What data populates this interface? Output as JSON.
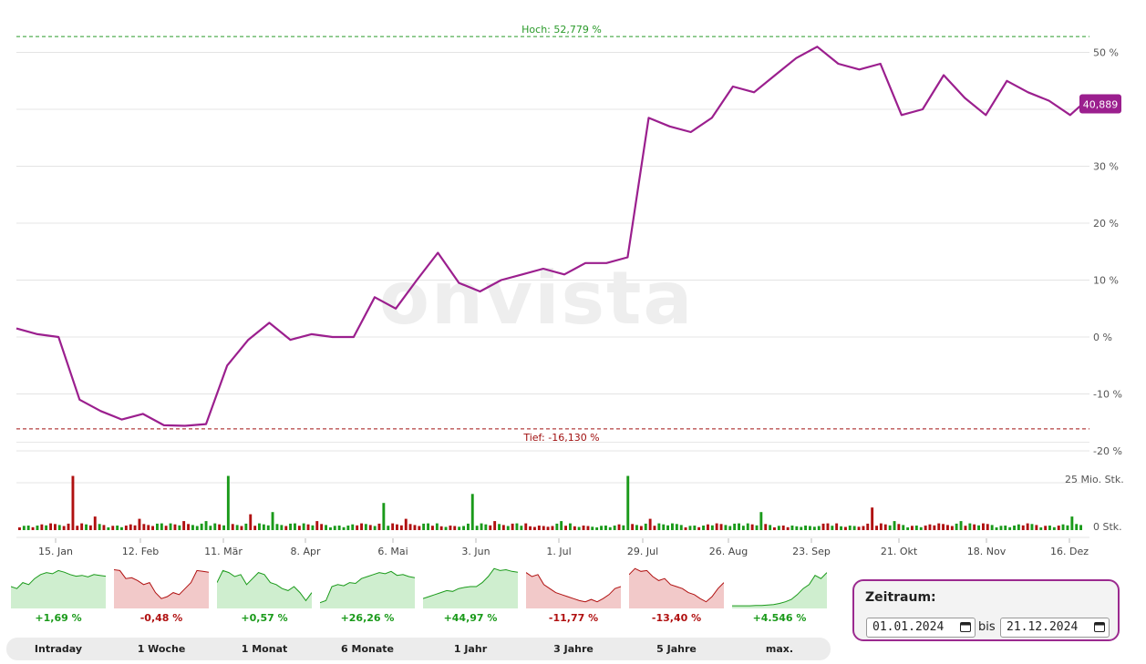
{
  "chart_data": {
    "type": "line",
    "watermark": "onvista",
    "y_unit": "%",
    "ylim": [
      -20,
      55
    ],
    "yticks": [
      "50 %",
      "30 %",
      "20 %",
      "10 %",
      "0 %",
      "-10 %",
      "-20 %"
    ],
    "ytick_values": [
      50,
      30,
      20,
      10,
      0,
      -10,
      -20
    ],
    "xticks": [
      "15. Jan",
      "12. Feb",
      "11. Mär",
      "8. Apr",
      "6. Mai",
      "3. Jun",
      "1. Jul",
      "29. Jul",
      "26. Aug",
      "23. Sep",
      "21. Okt",
      "18. Nov",
      "16. Dez"
    ],
    "grid": true,
    "high": {
      "label": "Hoch: 52,779 %",
      "value": 52.779,
      "color": "#2a9a2a"
    },
    "low": {
      "label": "Tief: -16,130 %",
      "value": -16.13,
      "color": "#a01010"
    },
    "last": {
      "label": "40,889",
      "value": 40.889
    },
    "line_color": "#9b1f8e",
    "x": [
      "2024-01-01",
      "2024-01-08",
      "2024-01-15",
      "2024-01-22",
      "2024-01-29",
      "2024-02-05",
      "2024-02-12",
      "2024-02-19",
      "2024-02-26",
      "2024-03-04",
      "2024-03-11",
      "2024-03-18",
      "2024-03-25",
      "2024-04-01",
      "2024-04-08",
      "2024-04-15",
      "2024-04-22",
      "2024-04-29",
      "2024-05-06",
      "2024-05-13",
      "2024-05-20",
      "2024-05-27",
      "2024-06-03",
      "2024-06-10",
      "2024-06-17",
      "2024-06-24",
      "2024-07-01",
      "2024-07-08",
      "2024-07-15",
      "2024-07-22",
      "2024-07-29",
      "2024-08-05",
      "2024-08-12",
      "2024-08-19",
      "2024-08-26",
      "2024-09-02",
      "2024-09-09",
      "2024-09-16",
      "2024-09-23",
      "2024-09-30",
      "2024-10-07",
      "2024-10-14",
      "2024-10-21",
      "2024-10-28",
      "2024-11-04",
      "2024-11-11",
      "2024-11-18",
      "2024-11-25",
      "2024-12-02",
      "2024-12-09",
      "2024-12-16",
      "2024-12-20"
    ],
    "series": [
      {
        "values": [
          1.5,
          0.5,
          0,
          -11,
          -13,
          -14.5,
          -13.5,
          -15.5,
          -15.6,
          -15.3,
          -5,
          -0.5,
          2.5,
          -0.5,
          0.5,
          0,
          0,
          7,
          5,
          10,
          14.8,
          9.5,
          8,
          10,
          11,
          12,
          11,
          13,
          13,
          14,
          38.5,
          37,
          36,
          38.5,
          44,
          43,
          46,
          49,
          51,
          48,
          47,
          48,
          39,
          40,
          46,
          42,
          39,
          45,
          43,
          41.5,
          39,
          40.889
        ]
      }
    ],
    "volume": {
      "label": "25 Mio. Stk.",
      "zero_label": "0 Stk.",
      "max": 25,
      "unit": "Mio. Stk.",
      "bars": [
        {
          "v": 2,
          "up": true
        },
        {
          "v": 3,
          "up": false
        },
        {
          "v": 24,
          "up": false
        },
        {
          "v": 6,
          "up": false
        },
        {
          "v": 2,
          "up": true
        },
        {
          "v": 5,
          "up": false
        },
        {
          "v": 3,
          "up": true
        },
        {
          "v": 4,
          "up": false
        },
        {
          "v": 4,
          "up": true
        },
        {
          "v": 24,
          "up": true
        },
        {
          "v": 7,
          "up": false
        },
        {
          "v": 8,
          "up": true
        },
        {
          "v": 3,
          "up": true
        },
        {
          "v": 4,
          "up": false
        },
        {
          "v": 2,
          "up": true
        },
        {
          "v": 3,
          "up": false
        },
        {
          "v": 12,
          "up": true
        },
        {
          "v": 5,
          "up": false
        },
        {
          "v": 3,
          "up": true
        },
        {
          "v": 2,
          "up": false
        },
        {
          "v": 16,
          "up": true
        },
        {
          "v": 4,
          "up": false
        },
        {
          "v": 3,
          "up": true
        },
        {
          "v": 2,
          "up": false
        },
        {
          "v": 4,
          "up": true
        },
        {
          "v": 2,
          "up": false
        },
        {
          "v": 2,
          "up": true
        },
        {
          "v": 24,
          "up": true
        },
        {
          "v": 5,
          "up": false
        },
        {
          "v": 3,
          "up": true
        },
        {
          "v": 2,
          "up": true
        },
        {
          "v": 3,
          "up": false
        },
        {
          "v": 3,
          "up": true
        },
        {
          "v": 8,
          "up": true
        },
        {
          "v": 2,
          "up": false
        },
        {
          "v": 2,
          "up": true
        },
        {
          "v": 3,
          "up": false
        },
        {
          "v": 2,
          "up": true
        },
        {
          "v": 10,
          "up": false
        },
        {
          "v": 4,
          "up": true
        },
        {
          "v": 2,
          "up": true
        },
        {
          "v": 3,
          "up": false
        },
        {
          "v": 4,
          "up": true
        },
        {
          "v": 3,
          "up": false
        },
        {
          "v": 2,
          "up": true
        },
        {
          "v": 3,
          "up": false
        },
        {
          "v": 2,
          "up": true
        },
        {
          "v": 6,
          "up": true
        }
      ]
    }
  },
  "ranges": [
    {
      "label": "Intraday",
      "change": "+1,69 %",
      "positive": true,
      "spark": [
        0.5,
        0.45,
        0.6,
        0.55,
        0.7,
        0.8,
        0.85,
        0.82,
        0.9,
        0.86,
        0.8,
        0.76,
        0.78,
        0.74,
        0.8,
        0.78,
        0.76
      ]
    },
    {
      "label": "1 Woche",
      "change": "-0,48 %",
      "positive": false,
      "spark": [
        0.92,
        0.9,
        0.7,
        0.72,
        0.65,
        0.55,
        0.6,
        0.35,
        0.2,
        0.25,
        0.35,
        0.3,
        0.45,
        0.6,
        0.9,
        0.88,
        0.86
      ]
    },
    {
      "label": "1 Monat",
      "change": "+0,57 %",
      "positive": true,
      "spark": [
        0.6,
        0.9,
        0.85,
        0.75,
        0.8,
        0.55,
        0.7,
        0.85,
        0.8,
        0.6,
        0.55,
        0.45,
        0.4,
        0.5,
        0.35,
        0.15,
        0.35
      ]
    },
    {
      "label": "6 Monate",
      "change": "+26,26 %",
      "positive": true,
      "spark": [
        0.1,
        0.15,
        0.5,
        0.55,
        0.52,
        0.6,
        0.58,
        0.7,
        0.75,
        0.8,
        0.85,
        0.82,
        0.88,
        0.78,
        0.8,
        0.75,
        0.72
      ]
    },
    {
      "label": "1 Jahr",
      "change": "+44,97 %",
      "positive": true,
      "spark": [
        0.2,
        0.25,
        0.3,
        0.35,
        0.4,
        0.38,
        0.45,
        0.48,
        0.5,
        0.5,
        0.6,
        0.75,
        0.95,
        0.9,
        0.92,
        0.88,
        0.86
      ]
    },
    {
      "label": "3 Jahre",
      "change": "-11,77 %",
      "positive": false,
      "spark": [
        0.85,
        0.75,
        0.8,
        0.55,
        0.45,
        0.35,
        0.3,
        0.25,
        0.2,
        0.15,
        0.12,
        0.18,
        0.12,
        0.2,
        0.3,
        0.45,
        0.5
      ]
    },
    {
      "label": "5 Jahre",
      "change": "-13,40 %",
      "positive": false,
      "spark": [
        0.8,
        0.95,
        0.88,
        0.9,
        0.75,
        0.65,
        0.7,
        0.55,
        0.5,
        0.45,
        0.35,
        0.3,
        0.2,
        0.12,
        0.25,
        0.45,
        0.6
      ]
    },
    {
      "label": "max.",
      "change": "+4.546 %",
      "positive": true,
      "spark": [
        0.02,
        0.02,
        0.02,
        0.02,
        0.03,
        0.03,
        0.04,
        0.05,
        0.08,
        0.12,
        0.18,
        0.3,
        0.45,
        0.55,
        0.78,
        0.7,
        0.85
      ]
    }
  ],
  "colors": {
    "up": "#1a9a1a",
    "down": "#b01010",
    "up_fill": "#cfeecf",
    "down_fill": "#f2c9c9",
    "accent": "#9b1f8e"
  },
  "zeitraum": {
    "title": "Zeitraum:",
    "from": "01.01.2024",
    "to": "21.12.2024",
    "bis": "bis",
    "from_icon": "calendar-icon",
    "to_icon": "calendar-icon"
  }
}
